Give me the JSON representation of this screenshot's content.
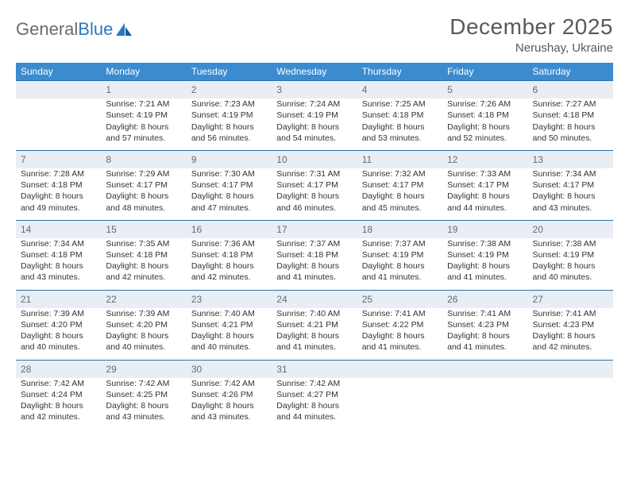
{
  "logo": {
    "word1": "General",
    "word2": "Blue"
  },
  "header": {
    "title": "December 2025",
    "location": "Nerushay, Ukraine"
  },
  "colors": {
    "header_bg": "#3b8bd0",
    "header_text": "#ffffff",
    "daynum_bg": "#e8eef3",
    "daynum_border": "#2b6fa8",
    "daynum_text": "#666b70",
    "title_text": "#555a5f",
    "body_text": "#333333",
    "logo_gray": "#6b6b6b",
    "logo_blue": "#2b78c2"
  },
  "weekdays": [
    "Sunday",
    "Monday",
    "Tuesday",
    "Wednesday",
    "Thursday",
    "Friday",
    "Saturday"
  ],
  "weeks": [
    {
      "nums": [
        "",
        "1",
        "2",
        "3",
        "4",
        "5",
        "6"
      ],
      "cells": [
        {
          "sunrise": "",
          "sunset": "",
          "daylight": ""
        },
        {
          "sunrise": "Sunrise: 7:21 AM",
          "sunset": "Sunset: 4:19 PM",
          "daylight": "Daylight: 8 hours and 57 minutes."
        },
        {
          "sunrise": "Sunrise: 7:23 AM",
          "sunset": "Sunset: 4:19 PM",
          "daylight": "Daylight: 8 hours and 56 minutes."
        },
        {
          "sunrise": "Sunrise: 7:24 AM",
          "sunset": "Sunset: 4:19 PM",
          "daylight": "Daylight: 8 hours and 54 minutes."
        },
        {
          "sunrise": "Sunrise: 7:25 AM",
          "sunset": "Sunset: 4:18 PM",
          "daylight": "Daylight: 8 hours and 53 minutes."
        },
        {
          "sunrise": "Sunrise: 7:26 AM",
          "sunset": "Sunset: 4:18 PM",
          "daylight": "Daylight: 8 hours and 52 minutes."
        },
        {
          "sunrise": "Sunrise: 7:27 AM",
          "sunset": "Sunset: 4:18 PM",
          "daylight": "Daylight: 8 hours and 50 minutes."
        }
      ]
    },
    {
      "nums": [
        "7",
        "8",
        "9",
        "10",
        "11",
        "12",
        "13"
      ],
      "cells": [
        {
          "sunrise": "Sunrise: 7:28 AM",
          "sunset": "Sunset: 4:18 PM",
          "daylight": "Daylight: 8 hours and 49 minutes."
        },
        {
          "sunrise": "Sunrise: 7:29 AM",
          "sunset": "Sunset: 4:17 PM",
          "daylight": "Daylight: 8 hours and 48 minutes."
        },
        {
          "sunrise": "Sunrise: 7:30 AM",
          "sunset": "Sunset: 4:17 PM",
          "daylight": "Daylight: 8 hours and 47 minutes."
        },
        {
          "sunrise": "Sunrise: 7:31 AM",
          "sunset": "Sunset: 4:17 PM",
          "daylight": "Daylight: 8 hours and 46 minutes."
        },
        {
          "sunrise": "Sunrise: 7:32 AM",
          "sunset": "Sunset: 4:17 PM",
          "daylight": "Daylight: 8 hours and 45 minutes."
        },
        {
          "sunrise": "Sunrise: 7:33 AM",
          "sunset": "Sunset: 4:17 PM",
          "daylight": "Daylight: 8 hours and 44 minutes."
        },
        {
          "sunrise": "Sunrise: 7:34 AM",
          "sunset": "Sunset: 4:17 PM",
          "daylight": "Daylight: 8 hours and 43 minutes."
        }
      ]
    },
    {
      "nums": [
        "14",
        "15",
        "16",
        "17",
        "18",
        "19",
        "20"
      ],
      "cells": [
        {
          "sunrise": "Sunrise: 7:34 AM",
          "sunset": "Sunset: 4:18 PM",
          "daylight": "Daylight: 8 hours and 43 minutes."
        },
        {
          "sunrise": "Sunrise: 7:35 AM",
          "sunset": "Sunset: 4:18 PM",
          "daylight": "Daylight: 8 hours and 42 minutes."
        },
        {
          "sunrise": "Sunrise: 7:36 AM",
          "sunset": "Sunset: 4:18 PM",
          "daylight": "Daylight: 8 hours and 42 minutes."
        },
        {
          "sunrise": "Sunrise: 7:37 AM",
          "sunset": "Sunset: 4:18 PM",
          "daylight": "Daylight: 8 hours and 41 minutes."
        },
        {
          "sunrise": "Sunrise: 7:37 AM",
          "sunset": "Sunset: 4:19 PM",
          "daylight": "Daylight: 8 hours and 41 minutes."
        },
        {
          "sunrise": "Sunrise: 7:38 AM",
          "sunset": "Sunset: 4:19 PM",
          "daylight": "Daylight: 8 hours and 41 minutes."
        },
        {
          "sunrise": "Sunrise: 7:38 AM",
          "sunset": "Sunset: 4:19 PM",
          "daylight": "Daylight: 8 hours and 40 minutes."
        }
      ]
    },
    {
      "nums": [
        "21",
        "22",
        "23",
        "24",
        "25",
        "26",
        "27"
      ],
      "cells": [
        {
          "sunrise": "Sunrise: 7:39 AM",
          "sunset": "Sunset: 4:20 PM",
          "daylight": "Daylight: 8 hours and 40 minutes."
        },
        {
          "sunrise": "Sunrise: 7:39 AM",
          "sunset": "Sunset: 4:20 PM",
          "daylight": "Daylight: 8 hours and 40 minutes."
        },
        {
          "sunrise": "Sunrise: 7:40 AM",
          "sunset": "Sunset: 4:21 PM",
          "daylight": "Daylight: 8 hours and 40 minutes."
        },
        {
          "sunrise": "Sunrise: 7:40 AM",
          "sunset": "Sunset: 4:21 PM",
          "daylight": "Daylight: 8 hours and 41 minutes."
        },
        {
          "sunrise": "Sunrise: 7:41 AM",
          "sunset": "Sunset: 4:22 PM",
          "daylight": "Daylight: 8 hours and 41 minutes."
        },
        {
          "sunrise": "Sunrise: 7:41 AM",
          "sunset": "Sunset: 4:23 PM",
          "daylight": "Daylight: 8 hours and 41 minutes."
        },
        {
          "sunrise": "Sunrise: 7:41 AM",
          "sunset": "Sunset: 4:23 PM",
          "daylight": "Daylight: 8 hours and 42 minutes."
        }
      ]
    },
    {
      "nums": [
        "28",
        "29",
        "30",
        "31",
        "",
        "",
        ""
      ],
      "cells": [
        {
          "sunrise": "Sunrise: 7:42 AM",
          "sunset": "Sunset: 4:24 PM",
          "daylight": "Daylight: 8 hours and 42 minutes."
        },
        {
          "sunrise": "Sunrise: 7:42 AM",
          "sunset": "Sunset: 4:25 PM",
          "daylight": "Daylight: 8 hours and 43 minutes."
        },
        {
          "sunrise": "Sunrise: 7:42 AM",
          "sunset": "Sunset: 4:26 PM",
          "daylight": "Daylight: 8 hours and 43 minutes."
        },
        {
          "sunrise": "Sunrise: 7:42 AM",
          "sunset": "Sunset: 4:27 PM",
          "daylight": "Daylight: 8 hours and 44 minutes."
        },
        {
          "sunrise": "",
          "sunset": "",
          "daylight": ""
        },
        {
          "sunrise": "",
          "sunset": "",
          "daylight": ""
        },
        {
          "sunrise": "",
          "sunset": "",
          "daylight": ""
        }
      ]
    }
  ]
}
